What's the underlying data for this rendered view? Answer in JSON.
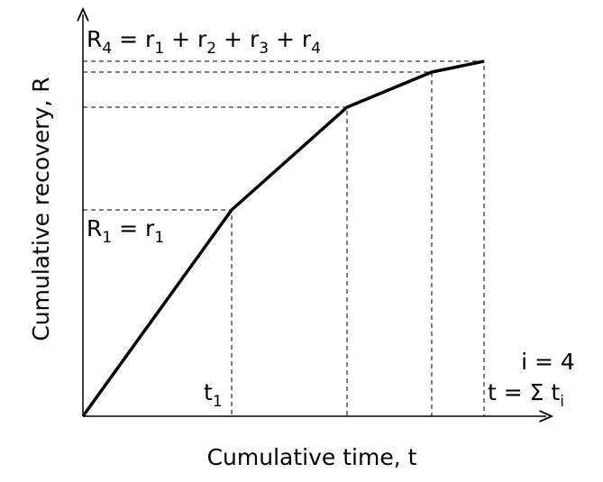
{
  "y_axis_title": "Cumulative recovery, R",
  "x_axis_title": "Cumulative time, t",
  "top_label": [
    [
      "R",
      "4"
    ],
    [
      " = r",
      "1"
    ],
    [
      " + r",
      "2"
    ],
    [
      " + r",
      "3"
    ],
    [
      " + r",
      "4"
    ]
  ],
  "first_label": [
    [
      "R",
      "1"
    ],
    [
      " = r",
      "1"
    ]
  ],
  "t1_label": [
    [
      "t",
      "1"
    ]
  ],
  "end_label": {
    "parts": [
      [
        "t = Σ t",
        "i"
      ]
    ],
    "superscript": "i = 4"
  }
}
